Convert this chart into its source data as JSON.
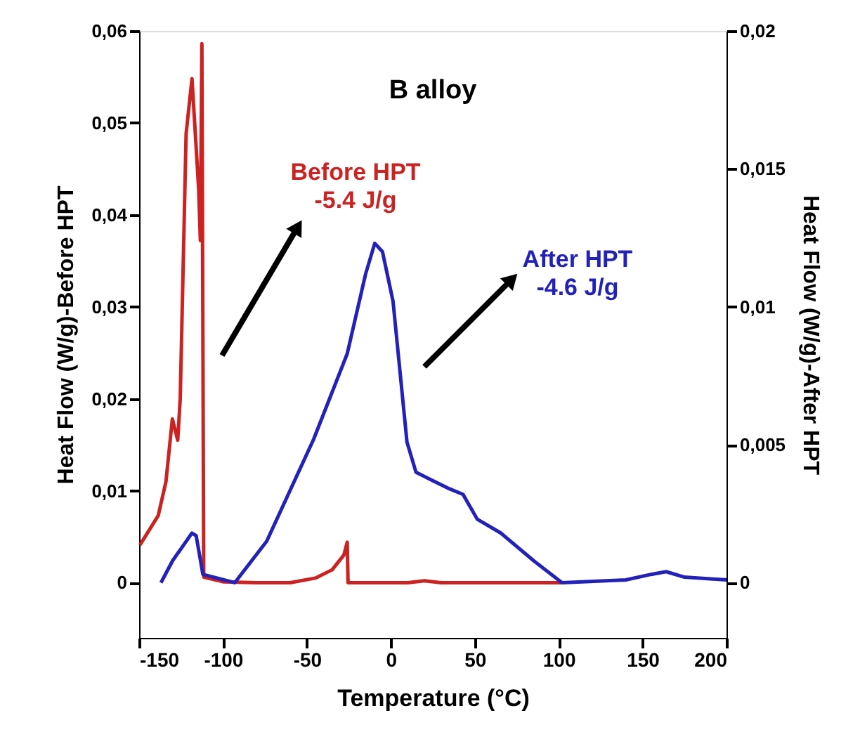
{
  "chart_data": {
    "type": "line",
    "title": "B alloy",
    "xlabel": "Temperature (°C)",
    "ylabel": "Heat Flow (W/g)-Before HPT",
    "y2label": "Heat Flow (W/g)-After HPT",
    "series": [
      {
        "name": "Before HPT",
        "color": "#cc2222",
        "axis": "y",
        "x": [
          -149.5,
          -138.6,
          -134,
          -130.2,
          -127,
          -125.5,
          -122,
          -118.5,
          -116,
          -114.5,
          -113.5,
          -112.6,
          -111.5,
          -100,
          -80,
          -60,
          -45,
          -35,
          -28,
          -26,
          -25.5,
          -10,
          10,
          20,
          30,
          60,
          102
        ],
        "values": [
          0.0041,
          0.0073,
          0.011,
          0.0178,
          0.0155,
          0.02,
          0.0488,
          0.0548,
          0.0473,
          0.0427,
          0.0372,
          0.0586,
          0.0006,
          0.0001,
          0.0,
          0.0,
          0.0005,
          0.0014,
          0.003,
          0.0044,
          0.0,
          0.0,
          0.0,
          0.0002,
          0.0,
          0.0,
          0.0
        ]
      },
      {
        "name": "After HPT",
        "color": "#2222bb",
        "axis": "y2",
        "x": [
          -137,
          -130,
          -118.5,
          -116,
          -112,
          -93,
          -74,
          -46,
          -26,
          -15,
          -9.6,
          -5,
          1.3,
          9.6,
          15,
          25,
          35,
          43,
          51.5,
          65.5,
          85,
          102,
          140,
          155,
          164,
          175,
          200
        ],
        "values": [
          0.0,
          0.0008,
          0.0018,
          0.0017,
          0.0003,
          0.0,
          0.0015,
          0.0052,
          0.0083,
          0.0112,
          0.0123,
          0.012,
          0.0102,
          0.0051,
          0.004,
          0.0037,
          0.0034,
          0.0032,
          0.0023,
          0.0018,
          0.0008,
          0.0,
          0.0001,
          0.0003,
          0.0004,
          0.0002,
          0.0001
        ]
      }
    ],
    "annotations": [
      "-5.4 J/g",
      "-4.6 J/g"
    ],
    "xlim": [
      -150,
      200
    ],
    "xticks": [
      -150,
      -100,
      -50,
      0,
      50,
      100,
      150,
      200
    ],
    "ylim": [
      -0.006,
      0.06
    ],
    "yticks": [
      0,
      {
        "value": 0.01,
        "label": "0,01"
      },
      {
        "value": 0.02,
        "label": "0,02"
      },
      {
        "value": 0.03,
        "label": "0,03"
      },
      {
        "value": 0.04,
        "label": "0,04"
      },
      {
        "value": 0.05,
        "label": "0,05"
      },
      {
        "value": 0.06,
        "label": "0,06"
      }
    ],
    "y2lim": [
      -0.002,
      0.02
    ],
    "y2ticks": [
      0,
      {
        "value": 0.005,
        "label": "0,005"
      },
      {
        "value": 0.01,
        "label": "0,01"
      },
      {
        "value": 0.015,
        "label": "0,015"
      },
      {
        "value": 0.02,
        "label": "0,02"
      }
    ],
    "grid": false,
    "line_style": "solid",
    "marker": "none"
  }
}
